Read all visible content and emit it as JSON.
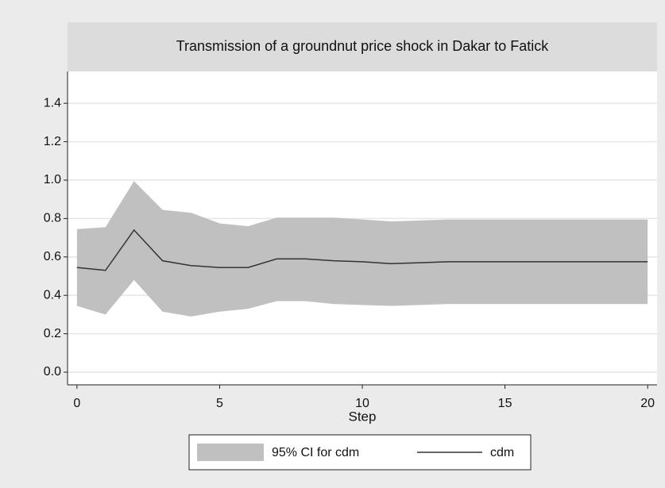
{
  "chart_data": {
    "type": "line",
    "title": "Transmission of a groundnut price shock in Dakar to Fatick",
    "x_label": "Step",
    "x": [
      0,
      1,
      2,
      3,
      4,
      5,
      6,
      7,
      8,
      9,
      10,
      11,
      12,
      13,
      14,
      15,
      16,
      17,
      18,
      19,
      20
    ],
    "series": [
      {
        "name": "95% CI for cdm",
        "color": "#c0c0c0",
        "lower": [
          0.345,
          0.3,
          0.48,
          0.315,
          0.29,
          0.315,
          0.33,
          0.37,
          0.37,
          0.355,
          0.35,
          0.345,
          0.35,
          0.355,
          0.355,
          0.355,
          0.355,
          0.355,
          0.355,
          0.355,
          0.355
        ],
        "upper": [
          0.745,
          0.755,
          0.995,
          0.845,
          0.83,
          0.775,
          0.76,
          0.805,
          0.805,
          0.805,
          0.795,
          0.785,
          0.79,
          0.795,
          0.795,
          0.795,
          0.795,
          0.795,
          0.795,
          0.795,
          0.795
        ]
      },
      {
        "name": "cdm",
        "color": "#333333",
        "values": [
          0.545,
          0.53,
          0.74,
          0.58,
          0.555,
          0.545,
          0.545,
          0.59,
          0.59,
          0.58,
          0.575,
          0.565,
          0.57,
          0.575,
          0.575,
          0.575,
          0.575,
          0.575,
          0.575,
          0.575,
          0.575
        ]
      }
    ],
    "xlim": [
      -0.33,
      20.33
    ],
    "xticks": [
      0,
      5,
      10,
      15,
      20
    ],
    "ylim": [
      -0.066,
      1.566
    ],
    "yticks": [
      {
        "value": 0,
        "label": "0.0"
      },
      0.2,
      0.4,
      0.6,
      0.8,
      {
        "value": 1,
        "label": "1.0"
      },
      1.2,
      1.4
    ],
    "grid": true
  }
}
